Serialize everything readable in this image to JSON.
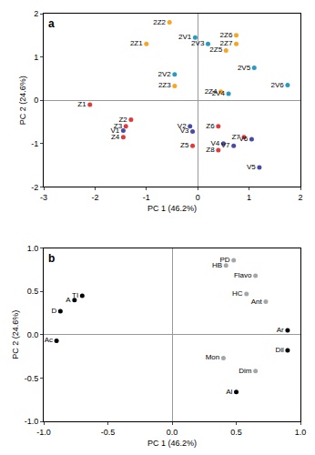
{
  "chart_data": [
    {
      "type": "scatter",
      "panel_label": "a",
      "x_label": "PC 1 (46.2%)",
      "y_label": "PC 2 (24.6%)",
      "xlim": [
        -3,
        2
      ],
      "ylim": [
        -2,
        2
      ],
      "xticks": [
        -3,
        -2,
        -1,
        0,
        1,
        2
      ],
      "yticks": [
        -2,
        -1,
        0,
        1,
        2
      ],
      "series": [
        {
          "color": "#f5a623",
          "labels": [
            "2Z1",
            "2Z2",
            "2Z3",
            "2Z4",
            "2Z5",
            "2Z6",
            "2Z7"
          ],
          "x": [
            -1.0,
            -0.55,
            -0.45,
            0.45,
            0.55,
            0.75,
            0.75
          ],
          "y": [
            1.3,
            1.8,
            0.33,
            0.2,
            1.15,
            1.5,
            1.3
          ]
        },
        {
          "color": "#2a9bbf",
          "labels": [
            "2V1",
            "2V2",
            "2V3",
            "2V4",
            "2V5",
            "2V6"
          ],
          "x": [
            -0.05,
            -0.45,
            0.2,
            0.6,
            1.1,
            1.75
          ],
          "y": [
            1.45,
            0.6,
            1.3,
            0.15,
            0.75,
            0.35
          ]
        },
        {
          "color": "#e03a3a",
          "labels": [
            "Z1",
            "Z2",
            "Z3",
            "Z4",
            "Z5",
            "Z6",
            "Z7",
            "Z8"
          ],
          "x": [
            -2.1,
            -1.3,
            -1.4,
            -1.45,
            -0.1,
            0.4,
            0.9,
            0.4
          ],
          "y": [
            -0.1,
            -0.45,
            -0.6,
            -0.85,
            -1.05,
            -0.6,
            -0.85,
            -1.15
          ]
        },
        {
          "color": "#4b4aa8",
          "labels": [
            "V1",
            "V2",
            "V3",
            "V4",
            "V5",
            "V6",
            "V7"
          ],
          "x": [
            -1.45,
            -0.15,
            -0.1,
            0.5,
            1.2,
            1.05,
            0.7
          ],
          "y": [
            -0.7,
            -0.6,
            -0.72,
            -1.0,
            -1.55,
            -0.9,
            -1.05
          ]
        }
      ]
    },
    {
      "type": "scatter",
      "panel_label": "b",
      "x_label": "PC 1 (46.2%)",
      "y_label": "PC 2 (24.6%)",
      "xlim": [
        -1,
        1
      ],
      "ylim": [
        -1,
        1
      ],
      "xticks": [
        {
          "value": -1,
          "label": "-1.0"
        },
        -0.5,
        {
          "value": 0,
          "label": "0.0"
        },
        0.5,
        {
          "value": 1,
          "label": "1.0"
        }
      ],
      "yticks": [
        {
          "value": -1,
          "label": "-1.0"
        },
        -0.5,
        {
          "value": 0,
          "label": "0.0"
        },
        0.5,
        {
          "value": 1,
          "label": "1.0"
        }
      ],
      "series": [
        {
          "color": "#000000",
          "labels": [
            "TI",
            "A",
            "D",
            "Ac",
            "Ar",
            "Dil",
            "Al"
          ],
          "x": [
            -0.7,
            -0.76,
            -0.87,
            -0.9,
            0.9,
            0.9,
            0.5
          ],
          "y": [
            0.45,
            0.4,
            0.27,
            -0.07,
            0.05,
            -0.18,
            -0.66
          ]
        },
        {
          "color": "#a6a6a6",
          "labels": [
            "PD",
            "HB",
            "Flavo",
            "HC",
            "Ant",
            "Mon",
            "Dim"
          ],
          "x": [
            0.48,
            0.42,
            0.65,
            0.58,
            0.73,
            0.4,
            0.65
          ],
          "y": [
            0.86,
            0.8,
            0.68,
            0.47,
            0.38,
            -0.27,
            -0.42
          ]
        }
      ]
    }
  ]
}
